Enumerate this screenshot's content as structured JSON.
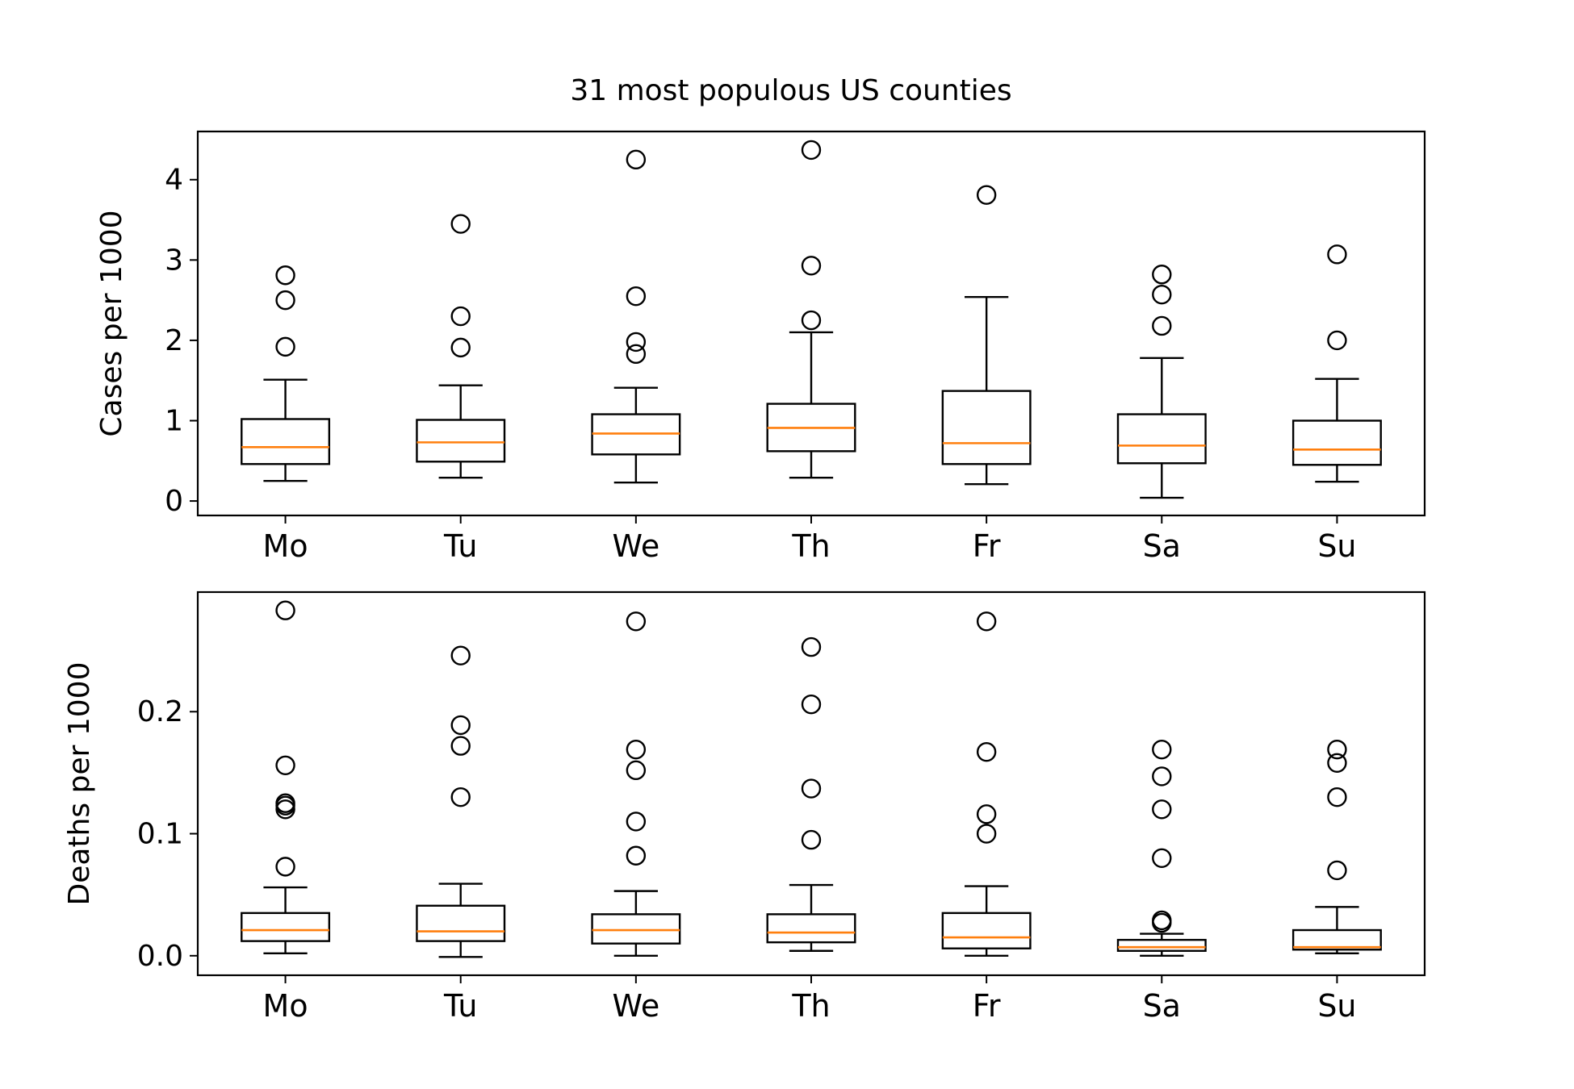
{
  "figure": {
    "title": "31 most populous US counties"
  },
  "colors": {
    "box": "#000000",
    "median": "#ff7f0e",
    "flier": "#000000",
    "background": "#ffffff"
  },
  "chart_data": [
    {
      "type": "box",
      "categories": [
        "Mo",
        "Tu",
        "We",
        "Th",
        "Fr",
        "Sa",
        "Su"
      ],
      "ylabel": "Cases per 1000",
      "xlabel": "",
      "ylim": [
        -0.18,
        4.6
      ],
      "yticks": [
        0,
        1,
        2,
        3,
        4
      ],
      "ytick_labels": [
        "0",
        "1",
        "2",
        "3",
        "4"
      ],
      "grid": false,
      "boxes": [
        {
          "whisker_low": 0.25,
          "q1": 0.46,
          "median": 0.67,
          "q3": 1.02,
          "whisker_high": 1.51,
          "fliers": [
            1.92,
            2.5,
            2.81
          ]
        },
        {
          "whisker_low": 0.29,
          "q1": 0.49,
          "median": 0.73,
          "q3": 1.01,
          "whisker_high": 1.44,
          "fliers": [
            1.91,
            2.3,
            3.45
          ]
        },
        {
          "whisker_low": 0.23,
          "q1": 0.58,
          "median": 0.84,
          "q3": 1.08,
          "whisker_high": 1.41,
          "fliers": [
            1.83,
            1.98,
            2.55,
            4.25
          ]
        },
        {
          "whisker_low": 0.29,
          "q1": 0.62,
          "median": 0.91,
          "q3": 1.21,
          "whisker_high": 2.1,
          "fliers": [
            2.25,
            2.93,
            4.37
          ]
        },
        {
          "whisker_low": 0.21,
          "q1": 0.46,
          "median": 0.72,
          "q3": 1.37,
          "whisker_high": 2.54,
          "fliers": [
            3.81
          ]
        },
        {
          "whisker_low": 0.04,
          "q1": 0.47,
          "median": 0.69,
          "q3": 1.08,
          "whisker_high": 1.78,
          "fliers": [
            2.18,
            2.57,
            2.82
          ]
        },
        {
          "whisker_low": 0.24,
          "q1": 0.45,
          "median": 0.64,
          "q3": 1.0,
          "whisker_high": 1.52,
          "fliers": [
            2.0,
            3.07
          ]
        }
      ]
    },
    {
      "type": "box",
      "categories": [
        "Mo",
        "Tu",
        "We",
        "Th",
        "Fr",
        "Sa",
        "Su"
      ],
      "ylabel": "Deaths per 1000",
      "xlabel": "",
      "ylim": [
        -0.016,
        0.298
      ],
      "yticks": [
        0.0,
        0.1,
        0.2
      ],
      "ytick_labels": [
        "0.0",
        "0.1",
        "0.2"
      ],
      "grid": false,
      "boxes": [
        {
          "whisker_low": 0.002,
          "q1": 0.012,
          "median": 0.021,
          "q3": 0.035,
          "whisker_high": 0.056,
          "fliers": [
            0.073,
            0.12,
            0.123,
            0.125,
            0.156,
            0.283
          ]
        },
        {
          "whisker_low": -0.001,
          "q1": 0.012,
          "median": 0.02,
          "q3": 0.041,
          "whisker_high": 0.059,
          "fliers": [
            0.13,
            0.172,
            0.189,
            0.246
          ]
        },
        {
          "whisker_low": 0.0,
          "q1": 0.01,
          "median": 0.021,
          "q3": 0.034,
          "whisker_high": 0.053,
          "fliers": [
            0.082,
            0.11,
            0.152,
            0.169,
            0.274
          ]
        },
        {
          "whisker_low": 0.004,
          "q1": 0.011,
          "median": 0.019,
          "q3": 0.034,
          "whisker_high": 0.058,
          "fliers": [
            0.095,
            0.137,
            0.206,
            0.253
          ]
        },
        {
          "whisker_low": 0.0,
          "q1": 0.006,
          "median": 0.015,
          "q3": 0.035,
          "whisker_high": 0.057,
          "fliers": [
            0.1,
            0.116,
            0.167,
            0.274
          ]
        },
        {
          "whisker_low": 0.0,
          "q1": 0.004,
          "median": 0.007,
          "q3": 0.013,
          "whisker_high": 0.018,
          "fliers": [
            0.027,
            0.029,
            0.08,
            0.12,
            0.147,
            0.169
          ]
        },
        {
          "whisker_low": 0.002,
          "q1": 0.005,
          "median": 0.007,
          "q3": 0.021,
          "whisker_high": 0.04,
          "fliers": [
            0.07,
            0.13,
            0.158,
            0.169
          ]
        }
      ]
    }
  ]
}
